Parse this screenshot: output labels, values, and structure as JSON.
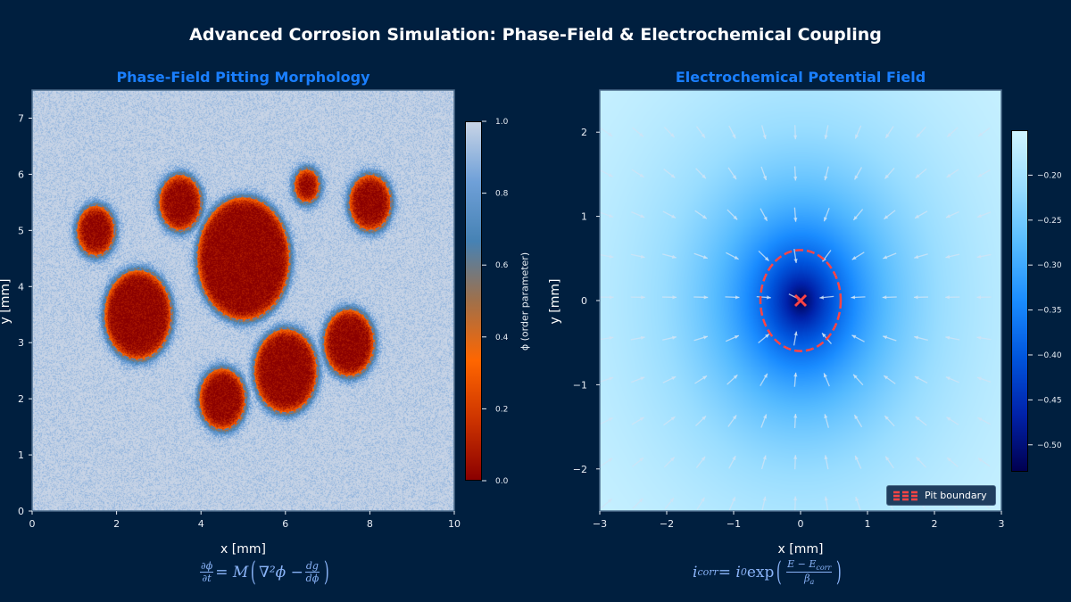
{
  "suptitle": "Advanced Corrosion Simulation: Phase-Field & Electrochemical Coupling",
  "colors": {
    "background": "#001f3f",
    "subtitle": "#1a7fff",
    "equation": "#8ab4f8",
    "pit_boundary": "#ff4444"
  },
  "chart_data": [
    {
      "type": "heatmap",
      "title": "Phase-Field Pitting Morphology",
      "xlabel": "x [mm]",
      "ylabel": "y [mm]",
      "xlim": [
        0,
        10
      ],
      "ylim": [
        0,
        7.5
      ],
      "xticks": [
        "0",
        "2",
        "4",
        "6",
        "8",
        "10"
      ],
      "yticks": [
        "0",
        "1",
        "2",
        "3",
        "4",
        "5",
        "6",
        "7"
      ],
      "grid": false,
      "colorbar": {
        "label": "ϕ (order parameter)",
        "range": [
          0,
          1
        ],
        "ticks": [
          "0.0",
          "0.2",
          "0.4",
          "0.6",
          "0.8",
          "1.0"
        ],
        "colormap": [
          "#8b0000",
          "#cc3300",
          "#ff6600",
          "#a0704a",
          "#4682b4",
          "#6fa0d8",
          "#c8d4e6"
        ]
      },
      "pits": [
        {
          "x": 1.5,
          "y": 5.0,
          "r": 0.45
        },
        {
          "x": 3.5,
          "y": 5.5,
          "r": 0.5
        },
        {
          "x": 5.0,
          "y": 4.5,
          "r": 1.1
        },
        {
          "x": 6.5,
          "y": 5.8,
          "r": 0.3
        },
        {
          "x": 8.0,
          "y": 5.5,
          "r": 0.5
        },
        {
          "x": 2.5,
          "y": 3.5,
          "r": 0.8
        },
        {
          "x": 7.5,
          "y": 3.0,
          "r": 0.6
        },
        {
          "x": 6.0,
          "y": 2.5,
          "r": 0.75
        },
        {
          "x": 4.5,
          "y": 2.0,
          "r": 0.55
        }
      ],
      "equation": {
        "lhs_num": "∂ϕ",
        "lhs_den": "∂t",
        "mid": "= M",
        "inner": "∇²ϕ −",
        "frac_num": "dg",
        "frac_den": "dϕ"
      }
    },
    {
      "type": "heatmap",
      "title": "Electrochemical Potential Field",
      "xlabel": "x [mm]",
      "ylabel": "y [mm]",
      "xlim": [
        -3,
        3
      ],
      "ylim": [
        -2.5,
        2.5
      ],
      "xticks": [
        "−3",
        "−2",
        "−1",
        "0",
        "1",
        "2",
        "3"
      ],
      "yticks": [
        "−2",
        "−1",
        "0",
        "1",
        "2"
      ],
      "grid": false,
      "colorbar": {
        "range": [
          -0.53,
          -0.15
        ],
        "ticks": [
          "−0.50",
          "−0.45",
          "−0.40",
          "−0.35",
          "−0.30",
          "−0.25",
          "−0.20"
        ],
        "colormap": [
          "#000050",
          "#0022aa",
          "#0055dd",
          "#1a8cff",
          "#55bbff",
          "#99ddff",
          "#d0f4ff"
        ]
      },
      "pit_center": {
        "x": 0,
        "y": 0
      },
      "pit_boundary_radius": 0.6,
      "legend": {
        "label": "Pit boundary",
        "placement": "lower-right"
      },
      "quiver": {
        "direction": "toward pit center",
        "color": "#d0e4f5"
      },
      "equation": {
        "lhs": "i",
        "lhs_sub": "corr",
        "mid": "= i",
        "mid_sub": "0",
        "fn": "exp",
        "frac_num": "E − E",
        "frac_num_sub": "corr",
        "frac_den": "β",
        "frac_den_sub": "a"
      }
    }
  ]
}
